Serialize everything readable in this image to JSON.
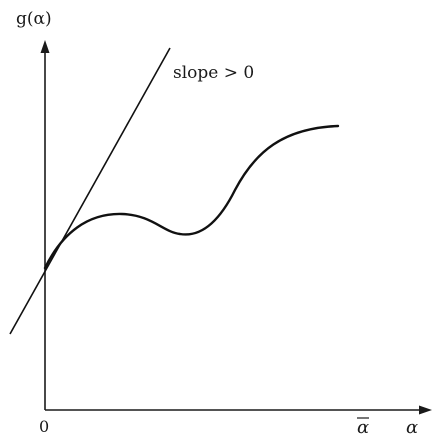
{
  "labels": {
    "y_axis": "g(α)",
    "x_axis": "α",
    "origin": "0",
    "alpha_bar": "α",
    "slope_annotation": "slope > 0"
  },
  "colors": {
    "ink": "#111111",
    "background": "#ffffff"
  }
}
